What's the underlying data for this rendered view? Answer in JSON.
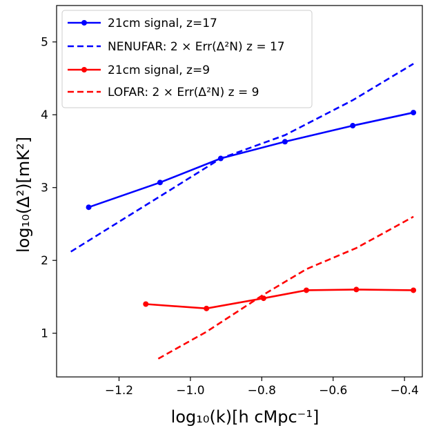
{
  "chart_data": {
    "type": "line",
    "xlabel": "log₁₀(k)[h cMpc⁻¹]",
    "ylabel": "log₁₀(Δ²)[mK²]",
    "xlim": [
      -1.375,
      -0.35
    ],
    "ylim": [
      0.4,
      5.5
    ],
    "xticks": [
      -1.2,
      -1.0,
      -0.8,
      -0.6,
      -0.4
    ],
    "xtick_labels": [
      "−1.2",
      "−1.0",
      "−0.8",
      "−0.6",
      "−0.4"
    ],
    "yticks": [
      1,
      2,
      3,
      4,
      5
    ],
    "ytick_labels": [
      "1",
      "2",
      "3",
      "4",
      "5"
    ],
    "grid": false,
    "legend_position": "top-left",
    "series": [
      {
        "name": "21cm signal, z=17",
        "color": "#0000ff",
        "style": "solid-markers",
        "x": [
          -1.285,
          -1.085,
          -0.915,
          -0.735,
          -0.545,
          -0.375
        ],
        "y": [
          2.73,
          3.07,
          3.4,
          3.63,
          3.85,
          4.03
        ]
      },
      {
        "name": "NENUFAR: 2 × Err(Δ²N) z = 17",
        "color": "#0000ff",
        "style": "dashed",
        "x": [
          -1.335,
          -1.085,
          -0.915,
          -0.735,
          -0.545,
          -0.375
        ],
        "y": [
          2.12,
          2.88,
          3.4,
          3.72,
          4.2,
          4.7
        ]
      },
      {
        "name": "21cm signal, z=9",
        "color": "#ff0000",
        "style": "solid-markers",
        "x": [
          -1.125,
          -0.955,
          -0.795,
          -0.675,
          -0.535,
          -0.375
        ],
        "y": [
          1.4,
          1.34,
          1.48,
          1.59,
          1.6,
          1.59
        ]
      },
      {
        "name": "LOFAR: 2 × Err(Δ²N) z = 9",
        "color": "#ff0000",
        "style": "dashed",
        "x": [
          -1.09,
          -0.955,
          -0.795,
          -0.675,
          -0.535,
          -0.375
        ],
        "y": [
          0.65,
          1.02,
          1.53,
          1.88,
          2.17,
          2.6
        ]
      }
    ]
  }
}
